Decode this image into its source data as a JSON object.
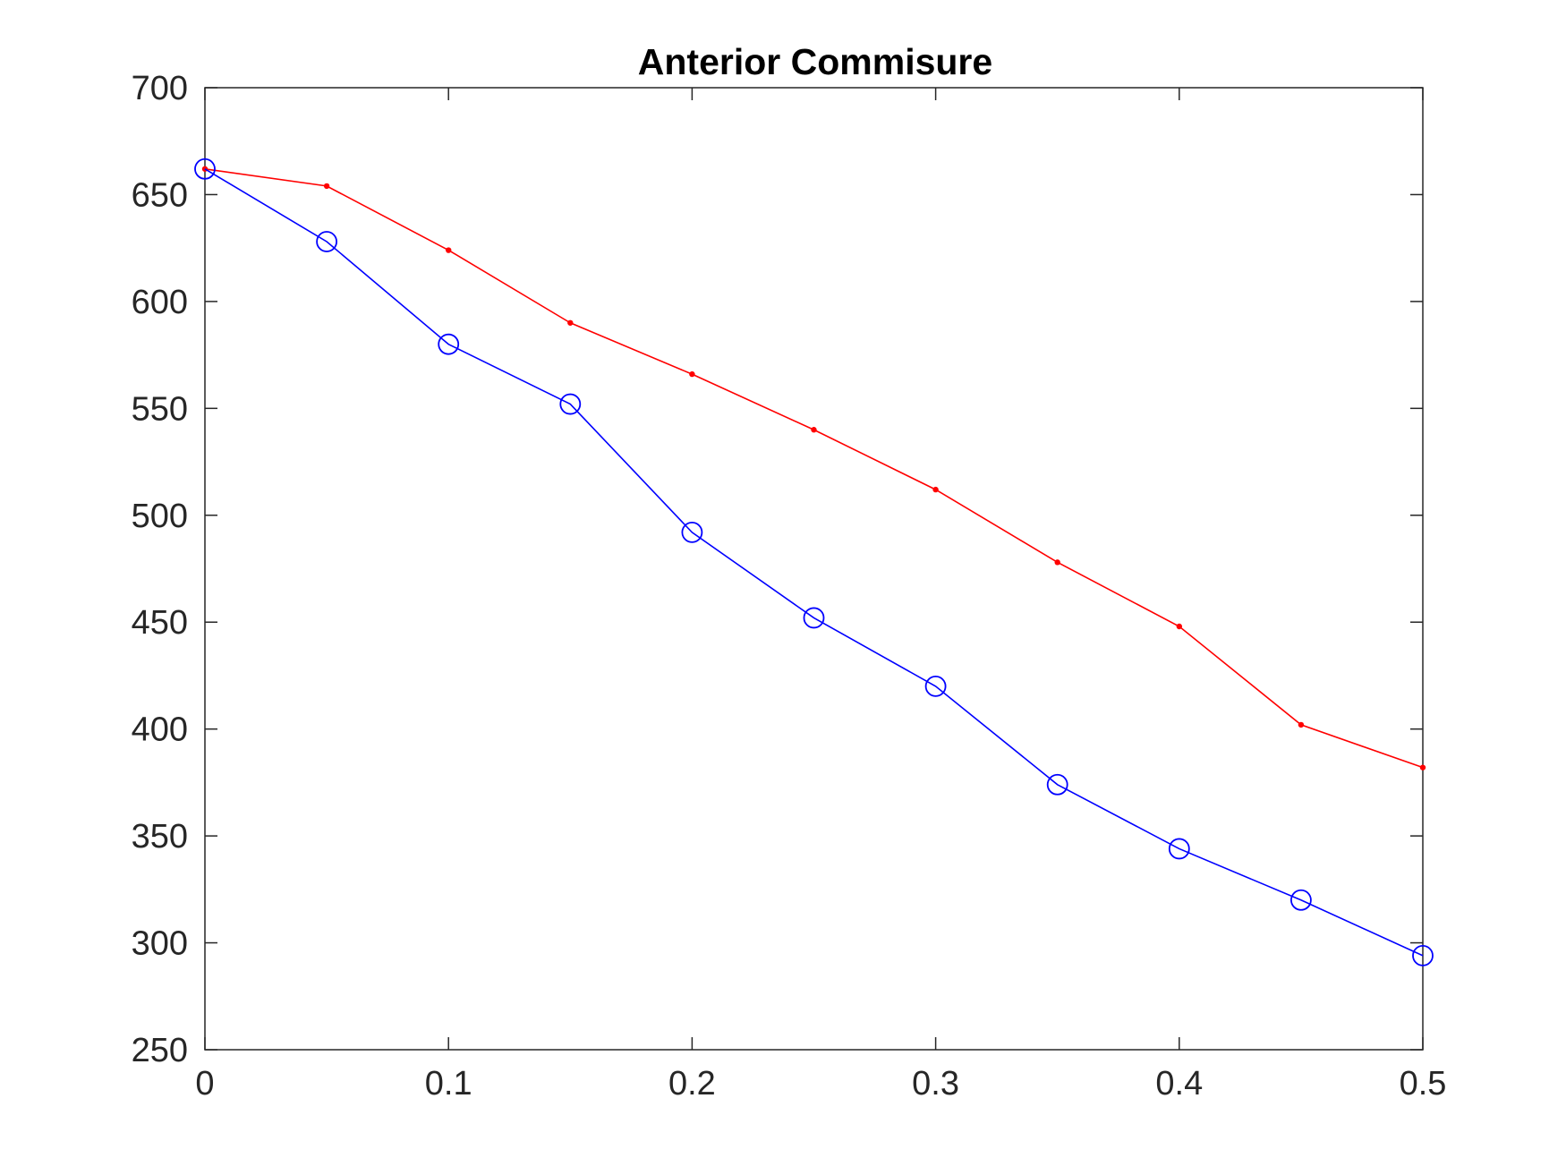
{
  "chart_data": {
    "type": "line",
    "title": "Anterior Commisure",
    "xlabel": "",
    "ylabel": "",
    "xlim": [
      0,
      0.5
    ],
    "ylim": [
      250,
      700
    ],
    "x_ticks": [
      "0",
      "0.1",
      "0.2",
      "0.3",
      "0.4",
      "0.5"
    ],
    "y_ticks": [
      "250",
      "300",
      "350",
      "400",
      "450",
      "500",
      "550",
      "600",
      "650",
      "700"
    ],
    "x_tick_values": [
      0,
      0.1,
      0.2,
      0.3,
      0.4,
      0.5
    ],
    "y_tick_values": [
      250,
      300,
      350,
      400,
      450,
      500,
      550,
      600,
      650,
      700
    ],
    "grid": false,
    "legend": "none",
    "x": [
      0,
      0.05,
      0.1,
      0.15,
      0.2,
      0.25,
      0.3,
      0.35,
      0.4,
      0.45,
      0.5
    ],
    "series": [
      {
        "color": "#ff0000",
        "marker": "dot",
        "values": [
          662,
          654,
          624,
          590,
          566,
          540,
          512,
          478,
          448,
          402,
          382
        ]
      },
      {
        "color": "#0000ff",
        "marker": "circle",
        "values": [
          662,
          628,
          580,
          552,
          492,
          452,
          420,
          374,
          344,
          320,
          294
        ]
      }
    ]
  }
}
